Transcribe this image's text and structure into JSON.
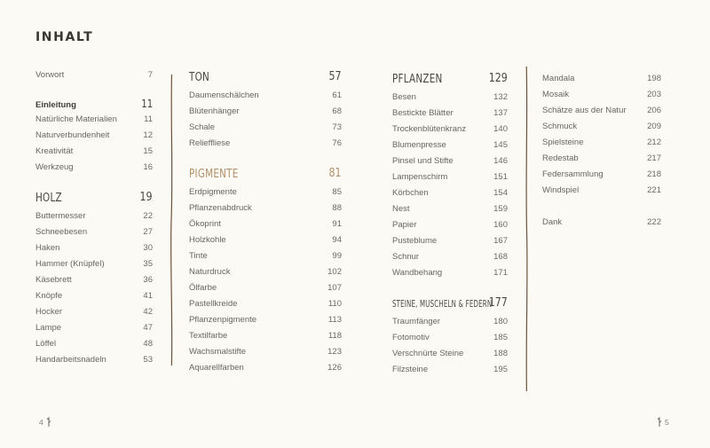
{
  "title": "INHALT",
  "footer": {
    "left_page": "4",
    "right_page": "5"
  },
  "icons": {
    "page_marker": "twig-icon",
    "column_divider": "branch-divider-icon"
  },
  "colors": {
    "background": "#fbfaf5",
    "heading": "#4a4841",
    "accent_heading": "#b3906a",
    "body_text": "#67665f",
    "divider": "#5e4023"
  },
  "columns": [
    {
      "groups": [
        {
          "entries": [
            {
              "label": "Vorwort",
              "page": "7"
            }
          ]
        },
        {
          "subheading": {
            "label": "Einleitung",
            "page": "11"
          },
          "entries": [
            {
              "label": "Natürliche Materialien",
              "page": "11"
            },
            {
              "label": "Naturverbundenheit",
              "page": "12"
            },
            {
              "label": "Kreativität",
              "page": "15"
            },
            {
              "label": "Werkzeug",
              "page": "16"
            }
          ]
        },
        {
          "heading": {
            "label": "HOLZ",
            "page": "19"
          },
          "entries": [
            {
              "label": "Buttermesser",
              "page": "22"
            },
            {
              "label": "Schneebesen",
              "page": "27"
            },
            {
              "label": "Haken",
              "page": "30"
            },
            {
              "label": "Hammer (Knüpfel)",
              "page": "35"
            },
            {
              "label": "Käsebrett",
              "page": "36"
            },
            {
              "label": "Knöpfe",
              "page": "41"
            },
            {
              "label": "Hocker",
              "page": "42"
            },
            {
              "label": "Lampe",
              "page": "47"
            },
            {
              "label": "Löffel",
              "page": "48"
            },
            {
              "label": "Handarbeitsnadeln",
              "page": "53"
            }
          ]
        }
      ]
    },
    {
      "groups": [
        {
          "heading": {
            "label": "TON",
            "page": "57"
          },
          "entries": [
            {
              "label": "Daumenschälchen",
              "page": "61"
            },
            {
              "label": "Blütenhänger",
              "page": "68"
            },
            {
              "label": "Schale",
              "page": "73"
            },
            {
              "label": "Relieffliese",
              "page": "76"
            }
          ]
        },
        {
          "heading": {
            "label": "PIGMENTE",
            "page": "81",
            "accent": true
          },
          "entries": [
            {
              "label": "Erdpigmente",
              "page": "85"
            },
            {
              "label": "Pflanzenabdruck",
              "page": "88"
            },
            {
              "label": "Ökoprint",
              "page": "91"
            },
            {
              "label": "Holzkohle",
              "page": "94"
            },
            {
              "label": "Tinte",
              "page": "99"
            },
            {
              "label": "Naturdruck",
              "page": "102"
            },
            {
              "label": "Ölfarbe",
              "page": "107"
            },
            {
              "label": "Pastellkreide",
              "page": "110"
            },
            {
              "label": "Pflanzenpigmente",
              "page": "113"
            },
            {
              "label": "Textilfarbe",
              "page": "118"
            },
            {
              "label": "Wachsmalstifte",
              "page": "123"
            },
            {
              "label": "Aquarellfarben",
              "page": "126"
            }
          ]
        }
      ]
    },
    {
      "groups": [
        {
          "heading": {
            "label": "PFLANZEN",
            "page": "129"
          },
          "entries": [
            {
              "label": "Besen",
              "page": "132"
            },
            {
              "label": "Bestickte Blätter",
              "page": "137"
            },
            {
              "label": "Trockenblütenkranz",
              "page": "140"
            },
            {
              "label": "Blumenpresse",
              "page": "145"
            },
            {
              "label": "Pinsel und Stifte",
              "page": "146"
            },
            {
              "label": "Lampenschirm",
              "page": "151"
            },
            {
              "label": "Körbchen",
              "page": "154"
            },
            {
              "label": "Nest",
              "page": "159"
            },
            {
              "label": "Papier",
              "page": "160"
            },
            {
              "label": "Pusteblume",
              "page": "167"
            },
            {
              "label": "Schnur",
              "page": "168"
            },
            {
              "label": "Wandbehang",
              "page": "171"
            }
          ]
        },
        {
          "heading": {
            "label": "STEINE, MUSCHELN & FEDERN",
            "page": "177"
          },
          "entries": [
            {
              "label": "Traumfänger",
              "page": "180"
            },
            {
              "label": "Fotomotiv",
              "page": "185"
            },
            {
              "label": "Verschnürte Steine",
              "page": "188"
            },
            {
              "label": "Filzsteine",
              "page": "195"
            }
          ]
        }
      ]
    },
    {
      "groups": [
        {
          "entries": [
            {
              "label": "Mandala",
              "page": "198"
            },
            {
              "label": "Mosaik",
              "page": "203"
            },
            {
              "label": "Schätze aus der Natur",
              "page": "206"
            },
            {
              "label": "Schmuck",
              "page": "209"
            },
            {
              "label": "Spielsteine",
              "page": "212"
            },
            {
              "label": "Redestab",
              "page": "217"
            },
            {
              "label": "Federsammlung",
              "page": "218"
            },
            {
              "label": "Windspiel",
              "page": "221"
            }
          ]
        },
        {
          "entries": [
            {
              "label": "Dank",
              "page": "222"
            }
          ]
        }
      ]
    }
  ]
}
